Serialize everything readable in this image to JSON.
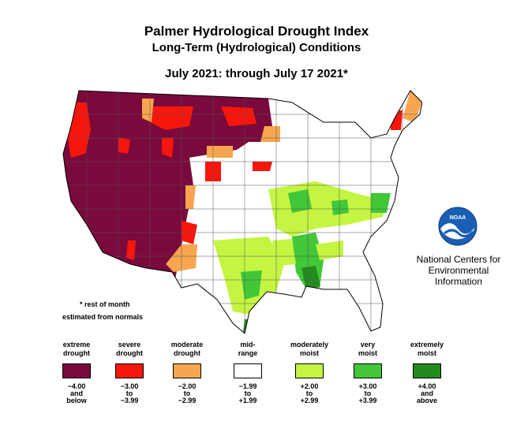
{
  "title": "Palmer Hydrological Drought Index",
  "subtitle": "Long-Term (Hydrological) Conditions",
  "period": "July 2021: through July 17 2021*",
  "note_line1": "* rest of month",
  "note_line2": "estimated from normals",
  "org": {
    "logo_text": "NOAA",
    "line1": "National Centers for",
    "line2": "Environmental",
    "line3": "Information"
  },
  "colors": {
    "extreme_drought": "#7a0a3c",
    "severe_drought": "#f7160c",
    "moderate_drought": "#f7a64f",
    "mid_range": "#ffffff",
    "moderately_moist": "#c4f542",
    "very_moist": "#41c738",
    "extremely_moist": "#238b1e"
  },
  "legend": [
    {
      "label1": "extreme",
      "label2": "drought",
      "range1": "−4.00",
      "range2": "and",
      "range3": "below",
      "color": "#7a0a3c"
    },
    {
      "label1": "severe",
      "label2": "drought",
      "range1": "−3.00",
      "range2": "to",
      "range3": "−3.99",
      "color": "#f7160c"
    },
    {
      "label1": "moderate",
      "label2": "drought",
      "range1": "−2.00",
      "range2": "to",
      "range3": "−2.99",
      "color": "#f7a64f"
    },
    {
      "label1": "mid-",
      "label2": "range",
      "range1": "−1.99",
      "range2": "to",
      "range3": "+1.99",
      "color": "#ffffff"
    },
    {
      "label1": "moderately",
      "label2": "moist",
      "range1": "+2.00",
      "range2": "to",
      "range3": "+2.99",
      "color": "#c4f542"
    },
    {
      "label1": "very",
      "label2": "moist",
      "range1": "+3.00",
      "range2": "to",
      "range3": "+3.99",
      "color": "#41c738"
    },
    {
      "label1": "extremely",
      "label2": "moist",
      "range1": "+4.00",
      "range2": "and",
      "range3": "above",
      "color": "#238b1e"
    }
  ]
}
